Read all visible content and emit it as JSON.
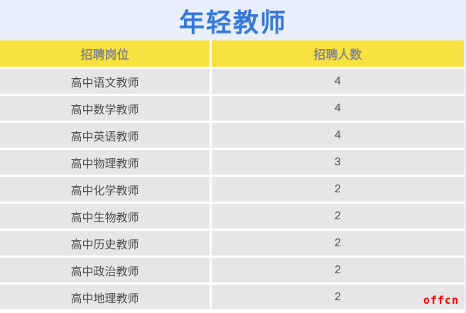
{
  "title": "年轻教师",
  "table": {
    "headers": [
      "招聘岗位",
      "招聘人数"
    ],
    "rows": [
      {
        "position": "高中语文教师",
        "count": "4"
      },
      {
        "position": "高中数学教师",
        "count": "4"
      },
      {
        "position": "高中英语教师",
        "count": "4"
      },
      {
        "position": "高中物理教师",
        "count": "3"
      },
      {
        "position": "高中化学教师",
        "count": "2"
      },
      {
        "position": "高中生物教师",
        "count": "2"
      },
      {
        "position": "高中历史教师",
        "count": "2"
      },
      {
        "position": "高中政治教师",
        "count": "2"
      },
      {
        "position": "高中地理教师",
        "count": "2"
      }
    ]
  },
  "watermark": "offcn",
  "colors": {
    "background": "#e8effb",
    "title_blue": "#3778d9",
    "header_yellow": "#f8e240",
    "header_text": "#8a8a88",
    "row_gray": "#e6e6e6",
    "body_text": "#4c4c4c",
    "separator": "#ffffff",
    "watermark_red": "#f10000"
  },
  "chart_data": {
    "type": "table",
    "title": "年轻教师",
    "columns": [
      "招聘岗位",
      "招聘人数"
    ],
    "categories": [
      "高中语文教师",
      "高中数学教师",
      "高中英语教师",
      "高中物理教师",
      "高中化学教师",
      "高中生物教师",
      "高中历史教师",
      "高中政治教师",
      "高中地理教师"
    ],
    "values": [
      4,
      4,
      4,
      3,
      2,
      2,
      2,
      2,
      2
    ]
  }
}
